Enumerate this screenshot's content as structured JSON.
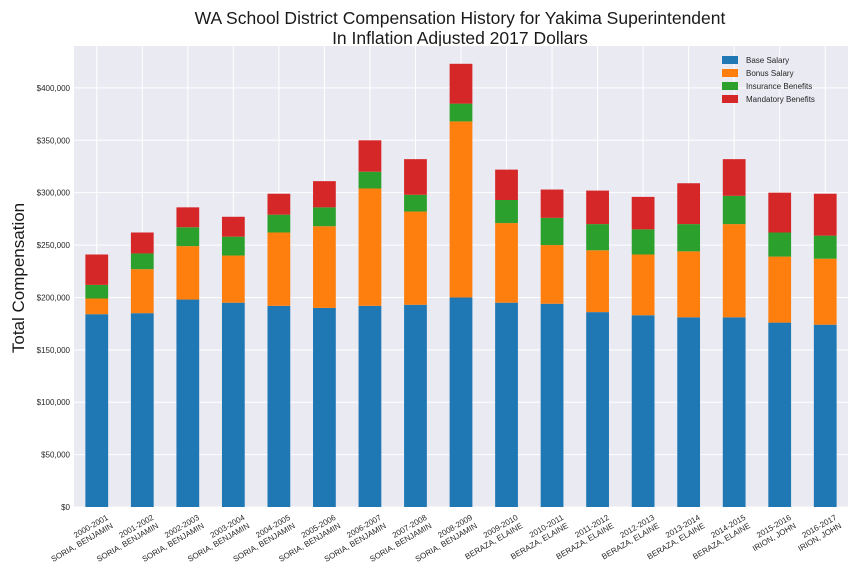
{
  "chart_data": {
    "type": "bar",
    "stacked": true,
    "title": [
      "WA School District Compensation History for Yakima Superintendent",
      "In Inflation Adjusted 2017 Dollars"
    ],
    "ylabel": "Total Compensation",
    "xlabel": "",
    "ylim": [
      0,
      440000
    ],
    "yticks": [
      "$0",
      "$50,000",
      "$100,000",
      "$150,000",
      "$200,000",
      "$250,000",
      "$300,000",
      "$350,000",
      "$400,000"
    ],
    "grid": true,
    "legend_position": "top-right",
    "categories": [
      [
        "2000-2001",
        "SORIA, BENJAMIN"
      ],
      [
        "2001-2002",
        "SORIA, BENJAMIN"
      ],
      [
        "2002-2003",
        "SORIA, BENJAMIN"
      ],
      [
        "2003-2004",
        "SORIA, BENJAMIN"
      ],
      [
        "2004-2005",
        "SORIA, BENJAMIN"
      ],
      [
        "2005-2006",
        "SORIA, BENJAMIN"
      ],
      [
        "2006-2007",
        "SORIA, BENJAMIN"
      ],
      [
        "2007-2008",
        "SORIA, BENJAMIN"
      ],
      [
        "2008-2009",
        "SORIA, BENJAMIN"
      ],
      [
        "2009-2010",
        "BERAZA, ELAINE"
      ],
      [
        "2010-2011",
        "BERAZA, ELAINE"
      ],
      [
        "2011-2012",
        "BERAZA, ELAINE"
      ],
      [
        "2012-2013",
        "BERAZA, ELAINE"
      ],
      [
        "2013-2014",
        "BERAZA, ELAINE"
      ],
      [
        "2014-2015",
        "BERAZA, ELAINE"
      ],
      [
        "2015-2016",
        "IRION, JOHN"
      ],
      [
        "2016-2017",
        "IRION, JOHN"
      ]
    ],
    "series": [
      {
        "name": "Base Salary",
        "color": "#1f77b4",
        "values": [
          184000,
          185000,
          198000,
          195000,
          192000,
          190000,
          192000,
          193000,
          200000,
          195000,
          194000,
          186000,
          183000,
          181000,
          181000,
          176000,
          174000
        ]
      },
      {
        "name": "Bonus Salary",
        "color": "#ff7f0e",
        "values": [
          15000,
          42000,
          51000,
          45000,
          70000,
          78000,
          112000,
          89000,
          168000,
          76000,
          56000,
          59000,
          58000,
          63000,
          89000,
          63000,
          63000
        ]
      },
      {
        "name": "Insurance Benefits",
        "color": "#2ca02c",
        "values": [
          13000,
          15000,
          18000,
          18000,
          17000,
          18000,
          16000,
          16000,
          17000,
          22000,
          26000,
          25000,
          24000,
          26000,
          27000,
          23000,
          22000
        ]
      },
      {
        "name": "Mandatory Benefits",
        "color": "#d62728",
        "values": [
          29000,
          20000,
          19000,
          19000,
          20000,
          25000,
          30000,
          34000,
          38000,
          29000,
          27000,
          32000,
          31000,
          39000,
          35000,
          38000,
          40000
        ]
      }
    ]
  }
}
